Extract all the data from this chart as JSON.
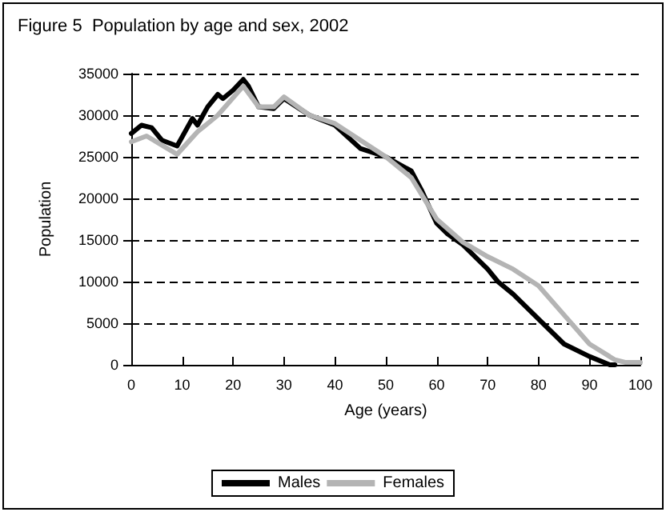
{
  "chart_data": {
    "type": "line",
    "title": "Figure 5  Population by age and sex, 2002",
    "xlabel": "Age (years)",
    "ylabel": "Population",
    "xlim": [
      0,
      100
    ],
    "xticks": [
      0,
      10,
      20,
      30,
      40,
      50,
      60,
      70,
      80,
      90,
      100
    ],
    "ylim": [
      0,
      35000
    ],
    "yticks": [
      0,
      5000,
      10000,
      15000,
      20000,
      25000,
      30000,
      35000
    ],
    "grid": "y",
    "legend": "bottom",
    "marker": "none",
    "line_style": "solid",
    "series": [
      {
        "name": "Males",
        "color": "#000000",
        "x": [
          0,
          2,
          4,
          6,
          9,
          12,
          13,
          15,
          17,
          18,
          20,
          22,
          23,
          25,
          28,
          30,
          35,
          40,
          45,
          50,
          55,
          57,
          60,
          62,
          65,
          70,
          72,
          75,
          80,
          85,
          90,
          94,
          95
        ],
        "values": [
          27800,
          28800,
          28500,
          27000,
          26300,
          29600,
          28800,
          31000,
          32500,
          32000,
          33000,
          34300,
          33500,
          31000,
          30800,
          32000,
          30000,
          28800,
          26000,
          25000,
          23300,
          21000,
          17000,
          15800,
          14500,
          11500,
          10000,
          8500,
          5500,
          2500,
          1000,
          0,
          0
        ]
      },
      {
        "name": "Females",
        "color": "#b4b4b4",
        "x": [
          0,
          3,
          9,
          13,
          17,
          22,
          25,
          28,
          30,
          35,
          40,
          45,
          50,
          55,
          60,
          65,
          70,
          75,
          80,
          85,
          90,
          95,
          97,
          100
        ],
        "values": [
          26800,
          27500,
          25300,
          28000,
          30000,
          33500,
          31000,
          31000,
          32200,
          30000,
          29000,
          27000,
          25000,
          22500,
          17500,
          14800,
          13000,
          11500,
          9500,
          6000,
          2500,
          600,
          300,
          300
        ]
      }
    ]
  }
}
